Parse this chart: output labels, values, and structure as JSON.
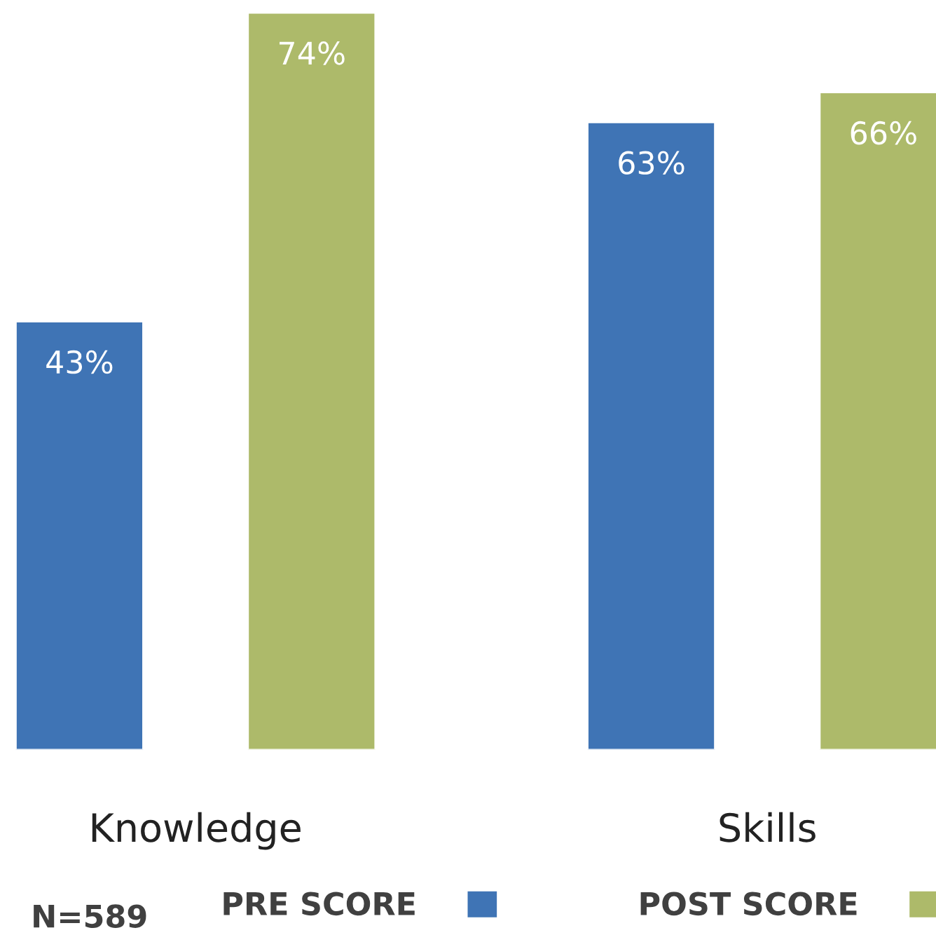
{
  "chart_data": {
    "type": "bar",
    "categories": [
      "Knowledge",
      "Skills"
    ],
    "series": [
      {
        "name": "PRE SCORE",
        "color": "#3f74b5",
        "values": [
          43,
          63
        ],
        "value_labels": [
          "43%",
          "63%"
        ]
      },
      {
        "name": "POST SCORE",
        "color": "#adba6a",
        "values": [
          74,
          66
        ],
        "value_labels": [
          "74%",
          "66%"
        ]
      }
    ],
    "tick_labels": "x",
    "grid": false,
    "legend": "bottom",
    "annotations": [
      "N=589"
    ]
  }
}
